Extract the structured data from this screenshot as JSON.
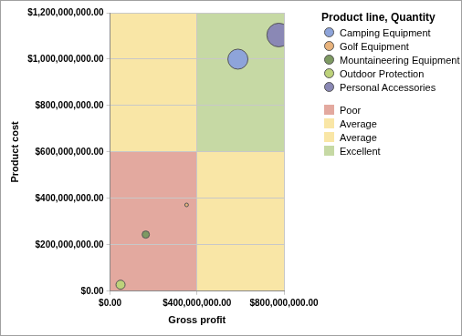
{
  "chart_data": {
    "type": "bubble",
    "x_label": "Gross profit",
    "y_label": "Product cost",
    "legend_title": "Product line, Quantity",
    "legend": "top-right",
    "grid": true,
    "xlim": [
      0,
      800000000
    ],
    "xticks": [
      {
        "value": 0,
        "label": "$0.00"
      },
      {
        "value": 400000000,
        "label": "$400,000,000.00"
      },
      {
        "value": 800000000,
        "label": "$800,000,000.00"
      }
    ],
    "ylim": [
      0,
      1200000000
    ],
    "yticks": [
      {
        "value": 0,
        "label": "$0.00"
      },
      {
        "value": 200000000,
        "label": "$200,000,000.00"
      },
      {
        "value": 400000000,
        "label": "$400,000,000.00"
      },
      {
        "value": 600000000,
        "label": "$600,000,000.00"
      },
      {
        "value": 800000000,
        "label": "$800,000,000.00"
      },
      {
        "value": 1000000000,
        "label": "$1,000,000,000.00"
      },
      {
        "value": 1200000000,
        "label": "$1,200,000,000.00"
      }
    ],
    "series": [
      {
        "name": "Camping Equipment",
        "color": "#8ea4da",
        "x": [
          588000000
        ],
        "values": [
          1000000000
        ],
        "sizes": [
          12100000
        ]
      },
      {
        "name": "Golf Equipment",
        "color": "#e9b37c",
        "x": [
          352000000
        ],
        "values": [
          372000000
        ],
        "sizes": [
          400000
        ]
      },
      {
        "name": "Mountaineering Equipment",
        "color": "#7e9a62",
        "x": [
          164000000
        ],
        "values": [
          244000000
        ],
        "sizes": [
          1600000
        ]
      },
      {
        "name": "Outdoor Protection",
        "color": "#bdd27a",
        "x": [
          48000000
        ],
        "values": [
          28000000
        ],
        "sizes": [
          2500000
        ]
      },
      {
        "name": "Personal Accessories",
        "color": "#8a88b5",
        "x": [
          776000000
        ],
        "values": [
          1104000000
        ],
        "sizes": [
          16900000
        ]
      }
    ],
    "regions": [
      {
        "name": "Poor",
        "color": "#e3a99f",
        "xlim": [
          0,
          400000000
        ],
        "ylim": [
          0,
          600000000
        ]
      },
      {
        "name": "Average",
        "color": "#f9e6a6",
        "xlim": [
          0,
          400000000
        ],
        "ylim": [
          600000000,
          1200000000
        ]
      },
      {
        "name": "Average",
        "color": "#f9e6a6",
        "xlim": [
          400000000,
          800000000
        ],
        "ylim": [
          0,
          600000000
        ]
      },
      {
        "name": "Excellent",
        "color": "#c6d9a4",
        "xlim": [
          400000000,
          800000000
        ],
        "ylim": [
          600000000,
          1200000000
        ]
      }
    ]
  }
}
